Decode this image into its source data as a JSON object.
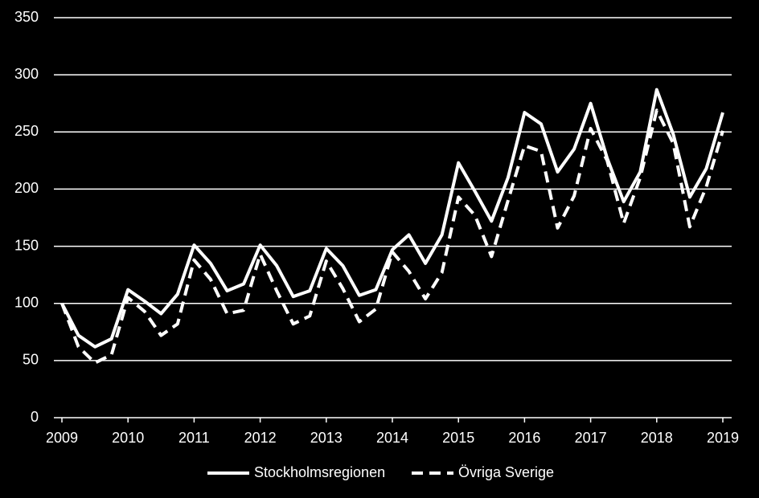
{
  "chart_data": {
    "type": "line",
    "background": "#000000",
    "x": [
      2009,
      2009.25,
      2009.5,
      2009.75,
      2010,
      2010.25,
      2010.5,
      2010.75,
      2011,
      2011.25,
      2011.5,
      2011.75,
      2012,
      2012.25,
      2012.5,
      2012.75,
      2013,
      2013.25,
      2013.5,
      2013.75,
      2014,
      2014.25,
      2014.5,
      2014.75,
      2015,
      2015.25,
      2015.5,
      2015.75,
      2016,
      2016.25,
      2016.5,
      2016.75,
      2017,
      2017.25,
      2017.5,
      2017.75,
      2018,
      2018.25,
      2018.5,
      2018.75,
      2019
    ],
    "series": [
      {
        "name": "Stockholmsregionen",
        "color": "#ffffff",
        "dash": false,
        "values": [
          100,
          72,
          62,
          69,
          112,
          102,
          91,
          108,
          151,
          135,
          111,
          117,
          151,
          133,
          106,
          111,
          148,
          133,
          107,
          112,
          147,
          160,
          135,
          160,
          223,
          198,
          172,
          210,
          267,
          257,
          215,
          235,
          275,
          227,
          189,
          215,
          287,
          248,
          193,
          218,
          267
        ]
      },
      {
        "name": "Övriga Sverige",
        "color": "#ffffff",
        "dash": true,
        "values": [
          100,
          62,
          48,
          55,
          105,
          93,
          72,
          82,
          138,
          121,
          91,
          94,
          143,
          111,
          82,
          89,
          137,
          113,
          84,
          95,
          145,
          128,
          104,
          127,
          193,
          177,
          141,
          190,
          238,
          233,
          166,
          194,
          253,
          225,
          170,
          210,
          269,
          240,
          167,
          202,
          251
        ]
      }
    ],
    "xlim": [
      2009,
      2019
    ],
    "xticks": [
      2009,
      2010,
      2011,
      2012,
      2013,
      2014,
      2015,
      2016,
      2017,
      2018,
      2019
    ],
    "ylim": [
      0,
      350
    ],
    "yticks": [
      0,
      50,
      100,
      150,
      200,
      250,
      300,
      350
    ],
    "grid": true,
    "legend": "bottom"
  }
}
